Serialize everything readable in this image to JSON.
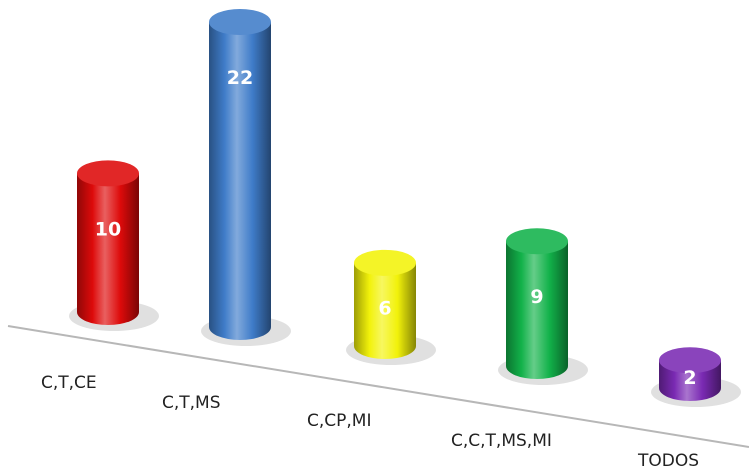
{
  "chart_data": {
    "type": "bar",
    "categories": [
      "C,T,CE",
      "C,T,MS",
      "C,CP,MI",
      "C,C,T,MS,MI",
      "TODOS"
    ],
    "values": [
      10,
      22,
      6,
      9,
      2
    ],
    "ylim": [
      0,
      22
    ],
    "grid": false,
    "legend": "none",
    "colors": [
      "#dd0a0a",
      "#3f7cc9",
      "#f2f20a",
      "#12b24a",
      "#7a2ab3"
    ],
    "value_label_color": "#ffffff",
    "value_labels": [
      "10",
      "22",
      "6",
      "9",
      "2"
    ]
  }
}
